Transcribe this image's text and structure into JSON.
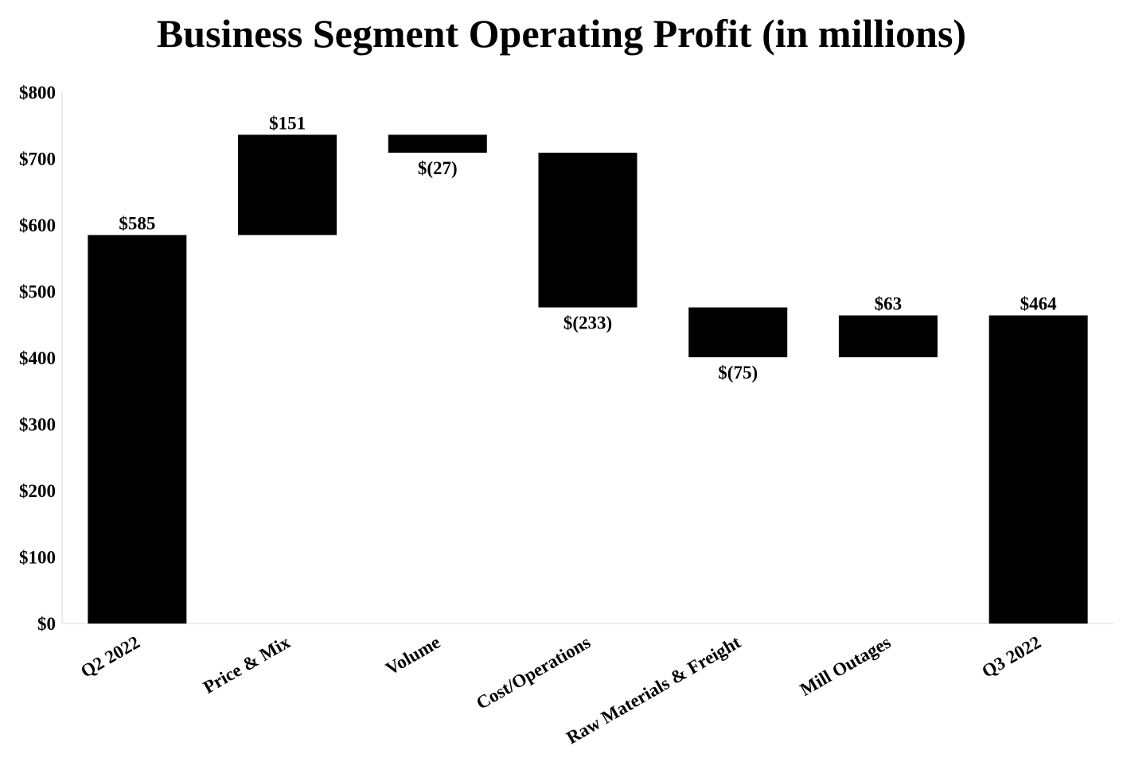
{
  "chart_data": {
    "type": "bar",
    "subtype": "waterfall",
    "title": "Business Segment Operating Profit (in millions)",
    "xlabel": "",
    "ylabel": "",
    "ylim": [
      0,
      800
    ],
    "y_ticks": [
      0,
      100,
      200,
      300,
      400,
      500,
      600,
      700,
      800
    ],
    "y_tick_labels": [
      "$0",
      "$100",
      "$200",
      "$300",
      "$400",
      "$500",
      "$600",
      "$700",
      "$800"
    ],
    "grid": false,
    "legend": "none",
    "bar_color": "#000000",
    "categories": [
      "Q2 2022",
      "Price & Mix",
      "Volume",
      "Cost/Operations",
      "Raw Materials & Freight",
      "Mill Outages",
      "Q3 2022"
    ],
    "values": [
      585,
      151,
      -27,
      -233,
      -75,
      63,
      464
    ],
    "bar_kinds": [
      "total",
      "delta",
      "delta",
      "delta",
      "delta",
      "delta",
      "total"
    ],
    "data_labels": [
      "$585",
      "$151",
      "$(27)",
      "$(233)",
      "$(75)",
      "$63",
      "$464"
    ]
  }
}
